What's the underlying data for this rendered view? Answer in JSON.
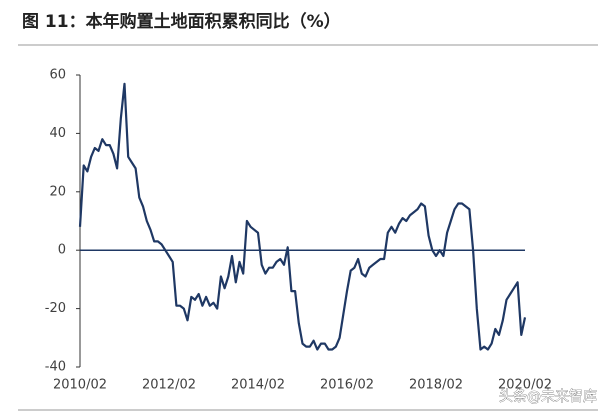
{
  "chart_data": {
    "type": "line",
    "title": "图 11：本年购置土地面积累积同比（%）",
    "annotation": "头条@未来智库",
    "color": "#1f3864",
    "categories": [
      "2010/02",
      null,
      null,
      null,
      null,
      null,
      null,
      null,
      null,
      null,
      null,
      null,
      null,
      null,
      null,
      null,
      null,
      null,
      null,
      null,
      null,
      null,
      null,
      null,
      "2012/02",
      null,
      null,
      null,
      null,
      null,
      null,
      null,
      null,
      null,
      null,
      null,
      null,
      null,
      null,
      null,
      null,
      null,
      null,
      null,
      null,
      null,
      null,
      null,
      "2014/02",
      null,
      null,
      null,
      null,
      null,
      null,
      null,
      null,
      null,
      null,
      null,
      null,
      null,
      null,
      null,
      null,
      null,
      null,
      null,
      null,
      null,
      null,
      null,
      "2016/02",
      null,
      null,
      null,
      null,
      null,
      null,
      null,
      null,
      null,
      null,
      null,
      null,
      null,
      null,
      null,
      null,
      null,
      null,
      null,
      null,
      null,
      null,
      null,
      "2018/02",
      null,
      null,
      null,
      null,
      null,
      null,
      null,
      null,
      null,
      null,
      null,
      null,
      null,
      null,
      null,
      null,
      null,
      null,
      null,
      null,
      null,
      null,
      null,
      "2020/02"
    ],
    "values": [
      8,
      29,
      27,
      32,
      35,
      34,
      38,
      36,
      36,
      33,
      28,
      45,
      57,
      32,
      30,
      28,
      18,
      15,
      10,
      7,
      3,
      3,
      2,
      0,
      -2,
      -4,
      -19,
      -19,
      -20,
      -24,
      -16,
      -17,
      -15,
      -19,
      -16,
      -19,
      -18,
      -20,
      -9,
      -13,
      -9,
      -2,
      -11,
      -4,
      -8,
      10,
      8,
      7,
      6,
      -5,
      -8,
      -6,
      -6,
      -4,
      -3,
      -5,
      1,
      -14,
      -14,
      -25,
      -32,
      -33,
      -33,
      -31,
      -34,
      -32,
      -32,
      -34,
      -34,
      -33,
      -30,
      -22,
      -14,
      -7,
      -6,
      -3,
      -8,
      -9,
      -6,
      -5,
      -4,
      -3,
      -3,
      6,
      8,
      6,
      9,
      11,
      10,
      12,
      13,
      14,
      16,
      15,
      5,
      0,
      -2,
      0,
      -2,
      6,
      10,
      14,
      16,
      16,
      15,
      14,
      0,
      -20,
      -34,
      -33,
      -34,
      -32,
      -27,
      -29,
      -24,
      -17,
      -15,
      -13,
      -11,
      -29,
      -23
    ],
    "ylim": [
      -40,
      60
    ],
    "yticks": [
      -40,
      -20,
      0,
      20,
      40,
      60
    ]
  }
}
